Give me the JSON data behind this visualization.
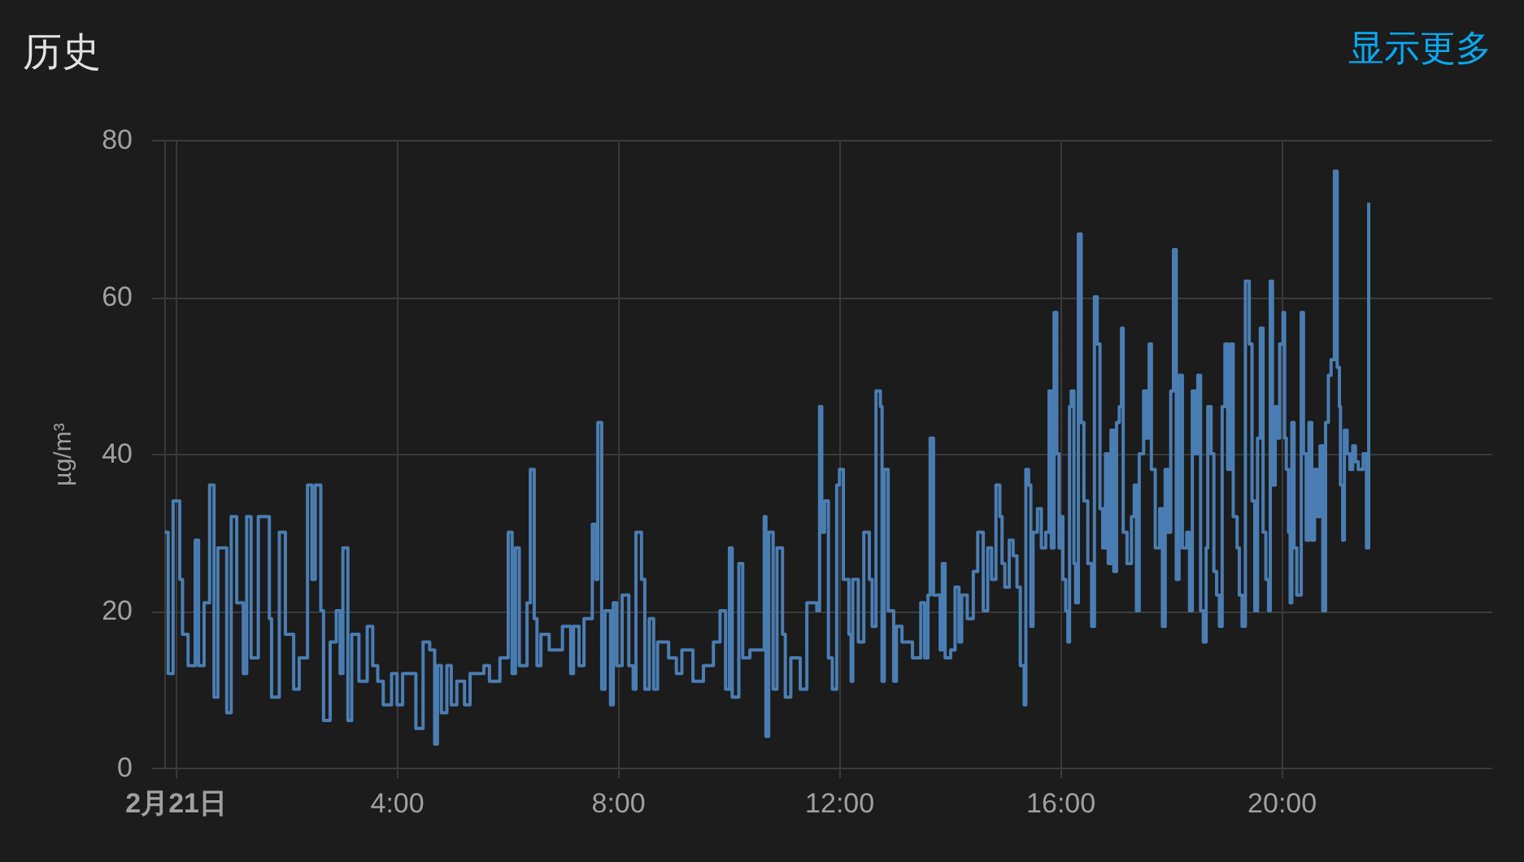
{
  "chart_data": {
    "type": "step",
    "title": "历史",
    "ylabel": "µg/m³",
    "annotations": [
      "显示更多"
    ],
    "color": "#4a7db2",
    "xlim": [
      -0.2,
      23.8
    ],
    "xticks": [
      {
        "value": 0,
        "label": "2月21日"
      },
      {
        "value": 4,
        "label": "4:00"
      },
      {
        "value": 8,
        "label": "8:00"
      },
      {
        "value": 12,
        "label": "12:00"
      },
      {
        "value": 16,
        "label": "16:00"
      },
      {
        "value": 20,
        "label": "20:00"
      }
    ],
    "ylim": [
      0,
      80
    ],
    "yticks": [
      0,
      20,
      40,
      60,
      80
    ],
    "grid": true,
    "x": [
      -0.19,
      -0.13,
      -0.04,
      0.08,
      0.13,
      0.23,
      0.36,
      0.42,
      0.52,
      0.62,
      0.7,
      0.77,
      0.93,
      1.01,
      1.11,
      1.23,
      1.29,
      1.37,
      1.5,
      1.7,
      1.74,
      1.88,
      1.99,
      2.14,
      2.24,
      2.39,
      2.47,
      2.53,
      2.63,
      2.68,
      2.8,
      2.91,
      2.98,
      3.03,
      3.12,
      3.19,
      3.32,
      3.47,
      3.57,
      3.66,
      3.76,
      3.91,
      4.01,
      4.11,
      4.35,
      4.48,
      4.6,
      4.69,
      4.74,
      4.81,
      4.91,
      4.99,
      5.09,
      5.23,
      5.33,
      5.58,
      5.68,
      5.87,
      6.02,
      6.09,
      6.15,
      6.22,
      6.36,
      6.42,
      6.49,
      6.54,
      6.61,
      6.76,
      7.0,
      7.15,
      7.2,
      7.3,
      7.39,
      7.54,
      7.6,
      7.64,
      7.71,
      7.77,
      7.87,
      7.92,
      7.98,
      8.08,
      8.2,
      8.28,
      8.33,
      8.43,
      8.49,
      8.57,
      8.65,
      8.72,
      8.92,
      9.06,
      9.16,
      9.36,
      9.55,
      9.73,
      9.85,
      9.95,
      10.02,
      10.07,
      10.19,
      10.26,
      10.39,
      10.65,
      10.68,
      10.73,
      10.81,
      10.88,
      10.98,
      11.03,
      11.13,
      11.3,
      11.42,
      11.6,
      11.65,
      11.69,
      11.74,
      11.81,
      11.88,
      11.96,
      12.01,
      12.08,
      12.18,
      12.22,
      12.25,
      12.35,
      12.45,
      12.55,
      12.6,
      12.67,
      12.75,
      12.78,
      12.82,
      12.89,
      12.99,
      13.04,
      13.14,
      13.33,
      13.48,
      13.55,
      13.61,
      13.65,
      13.71,
      13.83,
      13.87,
      13.92,
      14.02,
      14.1,
      14.17,
      14.22,
      14.32,
      14.43,
      14.51,
      14.61,
      14.69,
      14.76,
      14.84,
      14.91,
      14.95,
      15.0,
      15.08,
      15.15,
      15.22,
      15.28,
      15.35,
      15.38,
      15.43,
      15.47,
      15.51,
      15.59,
      15.66,
      15.74,
      15.8,
      15.84,
      15.89,
      15.94,
      15.98,
      16.01,
      16.05,
      16.1,
      16.14,
      16.17,
      16.2,
      16.25,
      16.28,
      16.33,
      16.38,
      16.43,
      16.5,
      16.57,
      16.62,
      16.67,
      16.72,
      16.77,
      16.82,
      16.87,
      16.92,
      16.97,
      17.02,
      17.07,
      17.11,
      17.14,
      17.21,
      17.29,
      17.34,
      17.38,
      17.43,
      17.51,
      17.56,
      17.61,
      17.65,
      17.72,
      17.8,
      17.85,
      17.9,
      17.95,
      18.0,
      18.05,
      18.1,
      18.15,
      18.21,
      18.29,
      18.34,
      18.39,
      18.44,
      18.49,
      18.54,
      18.59,
      18.64,
      18.67,
      18.73,
      18.78,
      18.83,
      18.88,
      18.93,
      18.98,
      19.03,
      19.08,
      19.13,
      19.2,
      19.24,
      19.29,
      19.35,
      19.42,
      19.47,
      19.52,
      19.57,
      19.62,
      19.67,
      19.72,
      19.77,
      19.8,
      19.84,
      19.89,
      19.93,
      19.97,
      20.03,
      20.06,
      20.09,
      20.13,
      20.16,
      20.19,
      20.23,
      20.28,
      20.36,
      20.4,
      20.45,
      20.5,
      20.55,
      20.6,
      20.65,
      20.7,
      20.75,
      20.8,
      20.85,
      20.9,
      20.96,
      21.01,
      21.05,
      21.07,
      21.11,
      21.14,
      21.19,
      21.24,
      21.29,
      21.34,
      21.39,
      21.48,
      21.54,
      21.58
    ],
    "values": [
      30,
      12,
      34,
      24,
      17,
      13,
      29,
      13,
      21,
      36,
      9,
      28,
      7,
      32,
      21,
      12,
      32,
      14,
      32,
      19,
      9,
      30,
      17,
      10,
      14,
      36,
      24,
      36,
      20,
      6,
      16,
      20,
      12,
      28,
      6,
      17,
      11,
      18,
      13,
      11,
      8,
      12,
      8,
      12,
      5,
      16,
      15,
      3,
      13,
      7,
      13,
      8,
      11,
      8,
      12,
      13,
      11,
      14,
      30,
      12,
      28,
      13,
      21,
      38,
      19,
      13,
      17,
      15,
      18,
      12,
      18,
      13,
      19,
      31,
      24,
      44,
      10,
      20,
      8,
      21,
      13,
      22,
      13,
      10,
      30,
      24,
      10,
      19,
      10,
      16,
      14,
      12,
      15,
      11,
      13,
      16,
      20,
      10,
      28,
      9,
      26,
      14,
      15,
      32,
      4,
      30,
      10,
      28,
      17,
      9,
      14,
      10,
      21,
      20,
      46,
      30,
      34,
      14,
      10,
      36,
      38,
      24,
      17,
      11,
      24,
      16,
      30,
      24,
      18,
      48,
      46,
      11,
      38,
      20,
      11,
      18,
      16,
      14,
      21,
      14,
      22,
      42,
      22,
      15,
      26,
      14,
      15,
      23,
      16,
      22,
      19,
      25,
      30,
      20,
      28,
      24,
      36,
      32,
      26,
      23,
      29,
      27,
      23,
      13,
      8,
      38,
      36,
      18,
      30,
      33,
      28,
      30,
      48,
      28,
      58,
      40,
      28,
      32,
      24,
      20,
      16,
      46,
      48,
      26,
      21,
      68,
      44,
      34,
      26,
      18,
      60,
      54,
      33,
      28,
      40,
      26,
      43,
      25,
      44,
      46,
      56,
      30,
      26,
      32,
      36,
      20,
      40,
      48,
      42,
      54,
      38,
      28,
      33,
      18,
      38,
      30,
      48,
      66,
      24,
      50,
      28,
      30,
      20,
      48,
      40,
      50,
      20,
      16,
      28,
      46,
      40,
      25,
      22,
      18,
      46,
      54,
      38,
      54,
      32,
      28,
      22,
      18,
      62,
      54,
      34,
      20,
      42,
      56,
      30,
      24,
      20,
      62,
      36,
      46,
      42,
      54,
      58,
      42,
      38,
      30,
      21,
      44,
      28,
      22,
      58,
      40,
      29,
      44,
      29,
      38,
      32,
      41,
      20,
      44,
      50,
      52,
      76,
      51,
      46,
      36,
      29,
      43,
      40,
      38,
      41,
      39,
      38,
      40,
      28,
      72
    ]
  }
}
